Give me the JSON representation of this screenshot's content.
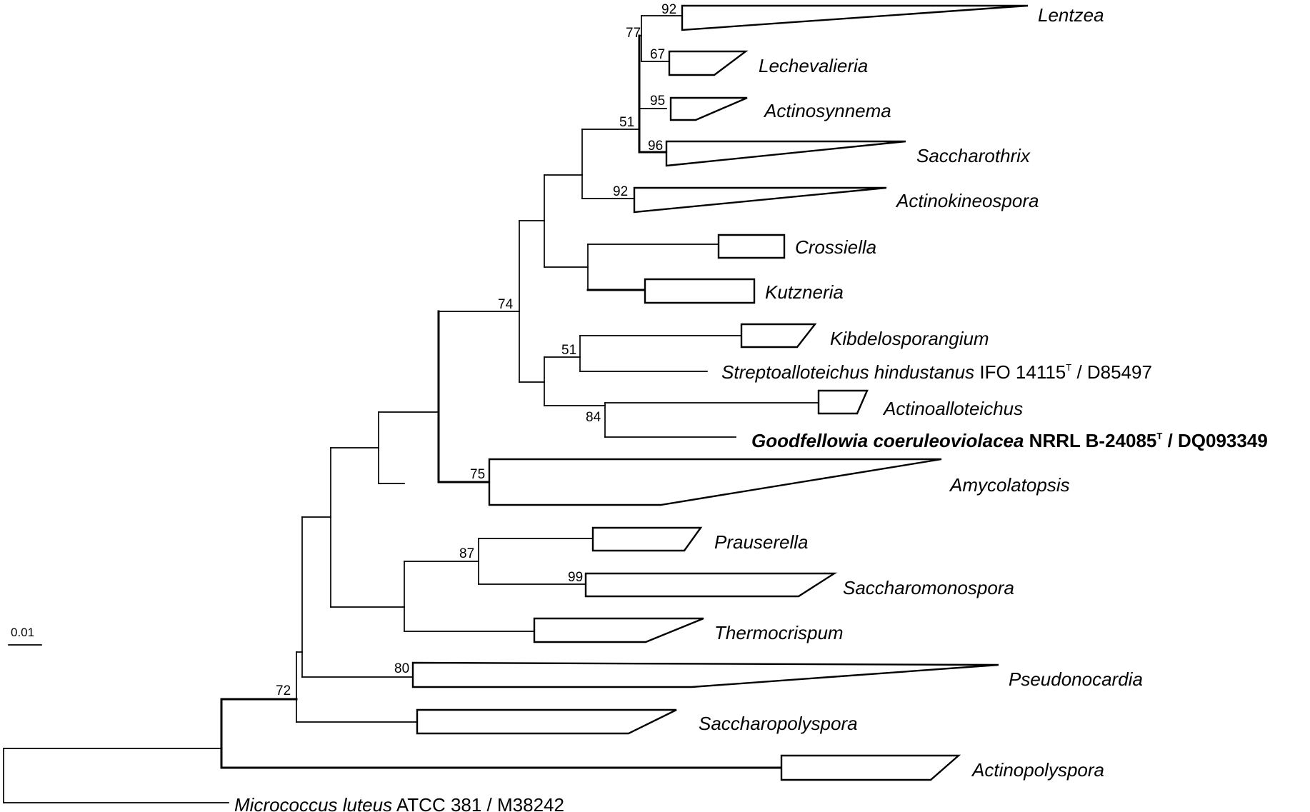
{
  "scale_bar": {
    "label": "0.01"
  },
  "bootstrap": {
    "lentzea": "92",
    "lentzea_lechevalieria": "77",
    "lechevalieria": "67",
    "actinosynnema": "95",
    "group_51_top": "51",
    "saccharothrix": "96",
    "actinokineospora": "92",
    "main_74": "74",
    "kibdelo_strepto": "51",
    "actinoalloteichus_goodfellowia": "84",
    "amycolatopsis": "75",
    "prauserella_saccharomonospora": "87",
    "saccharomonospora": "99",
    "pseudonocardia": "80",
    "root_72": "72"
  },
  "taxa": {
    "lentzea": "Lentzea",
    "lechevalieria": "Lechevalieria",
    "actinosynnema": "Actinosynnema",
    "saccharothrix": "Saccharothrix",
    "actinokineospora": "Actinokineospora",
    "crossiella": "Crossiella",
    "kutzneria": "Kutzneria",
    "kibdelosporangium": "Kibdelosporangium",
    "streptoalloteichus": {
      "name": "Streptoalloteichus hindustanus",
      "strain": " IFO 14115",
      "type_mark": "T",
      "accession": " / D85497"
    },
    "actinoalloteichus": "Actinoalloteichus",
    "goodfellowia": {
      "name": "Goodfellowia coeruleoviolacea",
      "strain": " NRRL B-24085",
      "type_mark": "T",
      "accession": " / DQ093349"
    },
    "amycolatopsis": "Amycolatopsis",
    "prauserella": "Prauserella",
    "saccharomonospora": "Saccharomonospora",
    "thermocrispum": "Thermocrispum",
    "pseudonocardia": "Pseudonocardia",
    "saccharopolyspora": "Saccharopolyspora",
    "actinopolyspora": "Actinopolyspora",
    "micrococcus": {
      "name": "Micrococcus luteus",
      "rest": " ATCC 381 / M38242"
    }
  }
}
